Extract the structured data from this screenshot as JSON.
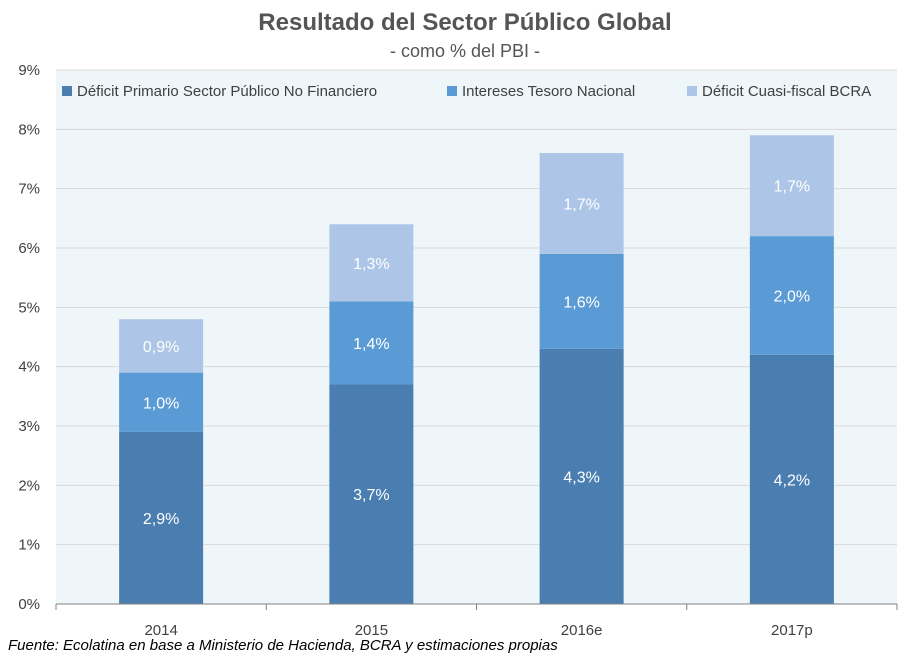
{
  "chart_data": {
    "type": "bar",
    "stacked": true,
    "title": "Resultado del Sector Público Global",
    "subtitle": "- como % del PBI -",
    "categories": [
      "2014",
      "2015",
      "2016e",
      "2017p"
    ],
    "series": [
      {
        "name": "Déficit Primario Sector Público No Financiero",
        "color": "#4a7eb0",
        "values": [
          2.9,
          3.7,
          4.3,
          4.2
        ],
        "labels": [
          "2,9%",
          "3,7%",
          "4,3%",
          "4,2%"
        ]
      },
      {
        "name": "Intereses Tesoro Nacional",
        "color": "#5b9bd5",
        "values": [
          1.0,
          1.4,
          1.6,
          2.0
        ],
        "labels": [
          "1,0%",
          "1,4%",
          "1,6%",
          "2,0%"
        ]
      },
      {
        "name": "Déficit Cuasi-fiscal BCRA",
        "color": "#adc5e6",
        "values": [
          0.9,
          1.3,
          1.7,
          1.7
        ],
        "labels": [
          "0,9%",
          "1,3%",
          "1,7%",
          "1,7%"
        ]
      }
    ],
    "ylim": [
      0,
      9
    ],
    "yticks": [
      "0%",
      "1%",
      "2%",
      "3%",
      "4%",
      "5%",
      "6%",
      "7%",
      "8%",
      "9%"
    ],
    "grid": true,
    "legend": "top",
    "plot_background": "#eef6f9",
    "grid_color": "#d9d9d9"
  },
  "source_note": "Fuente: Ecolatina en base a Ministerio de Hacienda, BCRA y estimaciones propias"
}
